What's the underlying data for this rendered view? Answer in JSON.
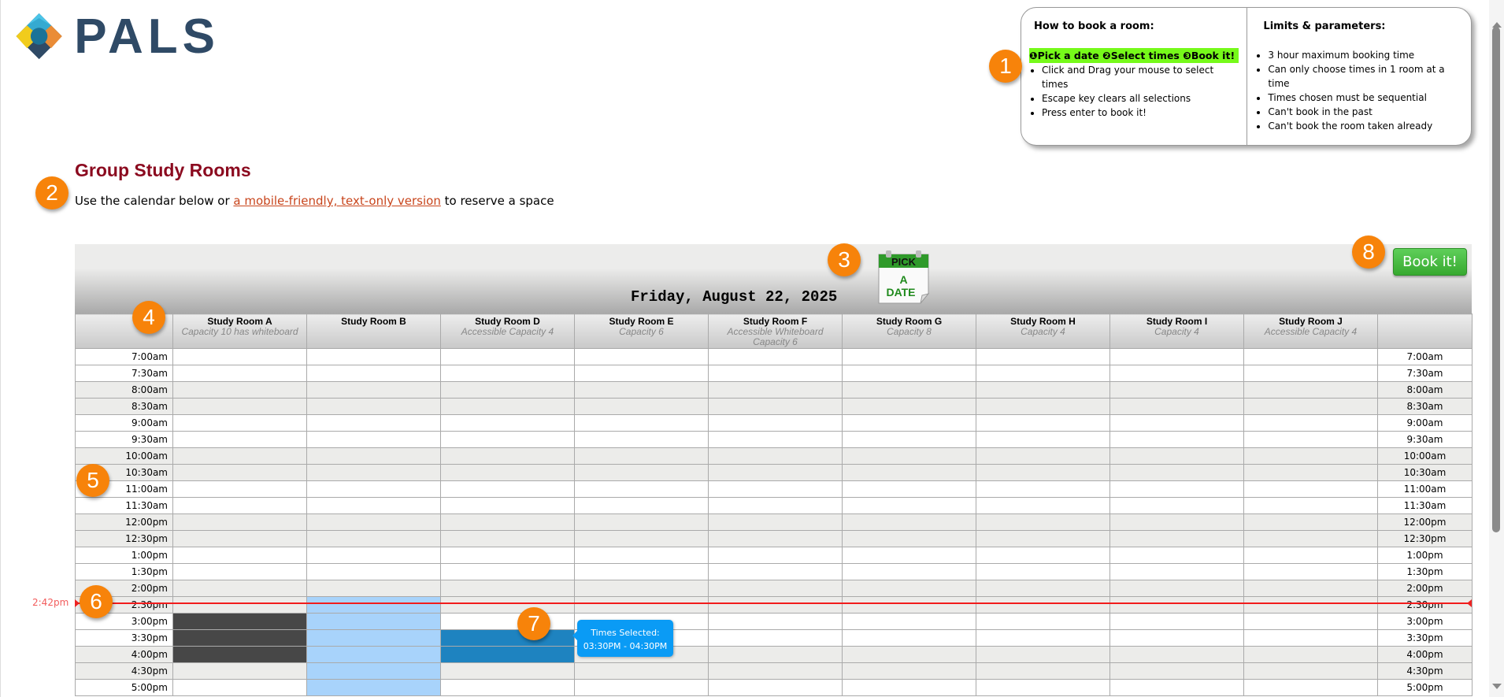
{
  "logo": {
    "text": "PALS"
  },
  "info": {
    "how_title": "How to book a room:",
    "steps": [
      "Pick a date",
      "Select times",
      "Book it!"
    ],
    "how_items": [
      "Click and Drag your mouse to select times",
      "Escape key clears all selections",
      "Press enter to book it!"
    ],
    "limits_title": "Limits & parameters:",
    "limits_items": [
      "3 hour maximum booking time",
      "Can only choose times in 1 room at a time",
      "Times chosen must be sequential",
      "Can't book in the past",
      "Can't book the room taken already"
    ]
  },
  "page": {
    "title": "Group Study Rooms",
    "intro_before": "Use the calendar below or ",
    "intro_link": "a mobile-friendly, text-only version",
    "intro_after": " to reserve a space"
  },
  "calendar": {
    "date": "Friday, August 22, 2025",
    "pick_date_icon": {
      "top": "PICK",
      "line1": "A",
      "line2": "DATE"
    },
    "book_label": "Book it!",
    "rooms": [
      {
        "name": "Study Room A",
        "cap": "Capacity 10 has whiteboard"
      },
      {
        "name": "Study Room B",
        "cap": ""
      },
      {
        "name": "Study Room D",
        "cap": "Accessible Capacity 4"
      },
      {
        "name": "Study Room E",
        "cap": "Capacity 6"
      },
      {
        "name": "Study Room F",
        "cap": "Accessible Whiteboard Capacity 6"
      },
      {
        "name": "Study Room G",
        "cap": "Capacity 8"
      },
      {
        "name": "Study Room H",
        "cap": "Capacity 4"
      },
      {
        "name": "Study Room I",
        "cap": "Capacity 4"
      },
      {
        "name": "Study Room J",
        "cap": "Accessible Capacity 4"
      }
    ],
    "times": [
      "7:00am",
      "7:30am",
      "8:00am",
      "8:30am",
      "9:00am",
      "9:30am",
      "10:00am",
      "10:30am",
      "11:00am",
      "11:30am",
      "12:00pm",
      "12:30pm",
      "1:00pm",
      "1:30pm",
      "2:00pm",
      "2:30pm",
      "3:00pm",
      "3:30pm",
      "4:00pm",
      "4:30pm",
      "5:00pm"
    ],
    "booked": {
      "Study Room A": [
        "3:00pm",
        "3:30pm",
        "4:00pm"
      ]
    },
    "highlighted": {
      "Study Room B": [
        "2:30pm",
        "3:00pm",
        "3:30pm",
        "4:00pm",
        "4:30pm",
        "5:00pm"
      ]
    },
    "selected": {
      "Study Room D": [
        "3:30pm",
        "4:00pm"
      ]
    },
    "now_label": "2:42pm",
    "tooltip": {
      "title": "Times Selected:",
      "range": "03:30PM - 04:30PM"
    }
  },
  "callouts": [
    "1",
    "2",
    "3",
    "4",
    "5",
    "6",
    "7",
    "8"
  ],
  "colors": {
    "title": "#8b0a1f",
    "link": "#c8451c",
    "booked": "#474747",
    "selected": "#1e83c0",
    "highlight": "#a8d3fb",
    "now_line": "#f21c1c",
    "callout": "#f7830a",
    "book_button": "#37a92f"
  }
}
